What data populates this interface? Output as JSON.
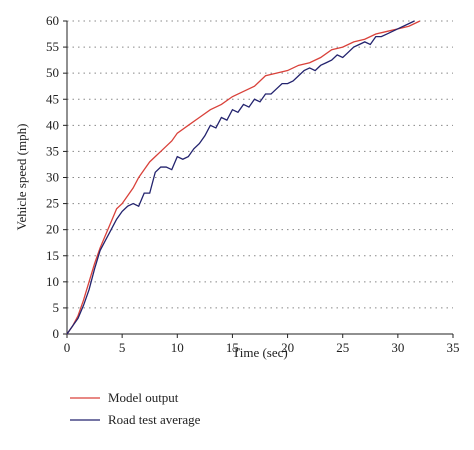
{
  "chart_data": {
    "type": "line",
    "x_label": "Time (sec)",
    "y_label": "Vehicle speed (mph)",
    "xlim": [
      0,
      35
    ],
    "xticks": [
      0,
      5,
      10,
      15,
      20,
      25,
      30,
      35
    ],
    "ylim": [
      0,
      60
    ],
    "yticks": [
      0,
      5,
      10,
      15,
      20,
      25,
      30,
      35,
      40,
      45,
      50,
      55,
      60
    ],
    "grid": true,
    "legend": "bottom-left",
    "series": [
      {
        "name": "Model output",
        "color": "#d9413a",
        "x": [
          0,
          0.5,
          1,
          1.5,
          2,
          2.5,
          3,
          3.5,
          4,
          4.5,
          5,
          5.5,
          6,
          6.5,
          7,
          7.5,
          8,
          8.5,
          9,
          9.5,
          10,
          11,
          12,
          13,
          14,
          15,
          16,
          17,
          18,
          19,
          20,
          21,
          22,
          23,
          24,
          25,
          26,
          27,
          28,
          29,
          30,
          31,
          32
        ],
        "values": [
          0,
          1.5,
          3.5,
          6.5,
          10,
          13.5,
          16.5,
          19,
          21.5,
          24,
          25,
          26.5,
          28,
          30,
          31.5,
          33,
          34,
          35,
          36,
          37,
          38.5,
          40,
          41.5,
          43,
          44,
          45.5,
          46.5,
          47.5,
          49.5,
          50,
          50.5,
          51.5,
          52,
          53,
          54.5,
          55,
          56,
          56.5,
          57.5,
          58,
          58.5,
          59,
          60
        ]
      },
      {
        "name": "Road test average",
        "color": "#23236e",
        "x": [
          0,
          0.5,
          1,
          1.5,
          2,
          2.5,
          3,
          3.5,
          4,
          4.5,
          5,
          5.5,
          6,
          6.5,
          7,
          7.5,
          8,
          8.5,
          9,
          9.5,
          10,
          10.5,
          11,
          11.5,
          12,
          12.5,
          13,
          13.5,
          14,
          14.5,
          15,
          15.5,
          16,
          16.5,
          17,
          17.5,
          18,
          18.5,
          19,
          19.5,
          20,
          20.5,
          21,
          21.5,
          22,
          22.5,
          23,
          23.5,
          24,
          24.5,
          25,
          25.5,
          26,
          26.5,
          27,
          27.5,
          28,
          28.5,
          29,
          30,
          31,
          31.5
        ],
        "values": [
          0,
          1.5,
          3,
          5.5,
          8.5,
          12.5,
          16,
          18,
          20,
          22,
          23.5,
          24.5,
          25,
          24.5,
          27,
          27,
          31,
          32,
          32,
          31.5,
          34,
          33.5,
          34,
          35.5,
          36.5,
          38,
          40,
          39.5,
          41.5,
          41,
          43,
          42.5,
          44,
          43.5,
          45,
          44.5,
          46,
          46,
          47,
          48,
          48,
          48.5,
          49.5,
          50.5,
          51,
          50.5,
          51.5,
          52,
          52.5,
          53.5,
          53,
          54,
          55,
          55.5,
          56,
          55.5,
          57,
          57,
          57.5,
          58.5,
          59.5,
          60
        ]
      }
    ]
  }
}
